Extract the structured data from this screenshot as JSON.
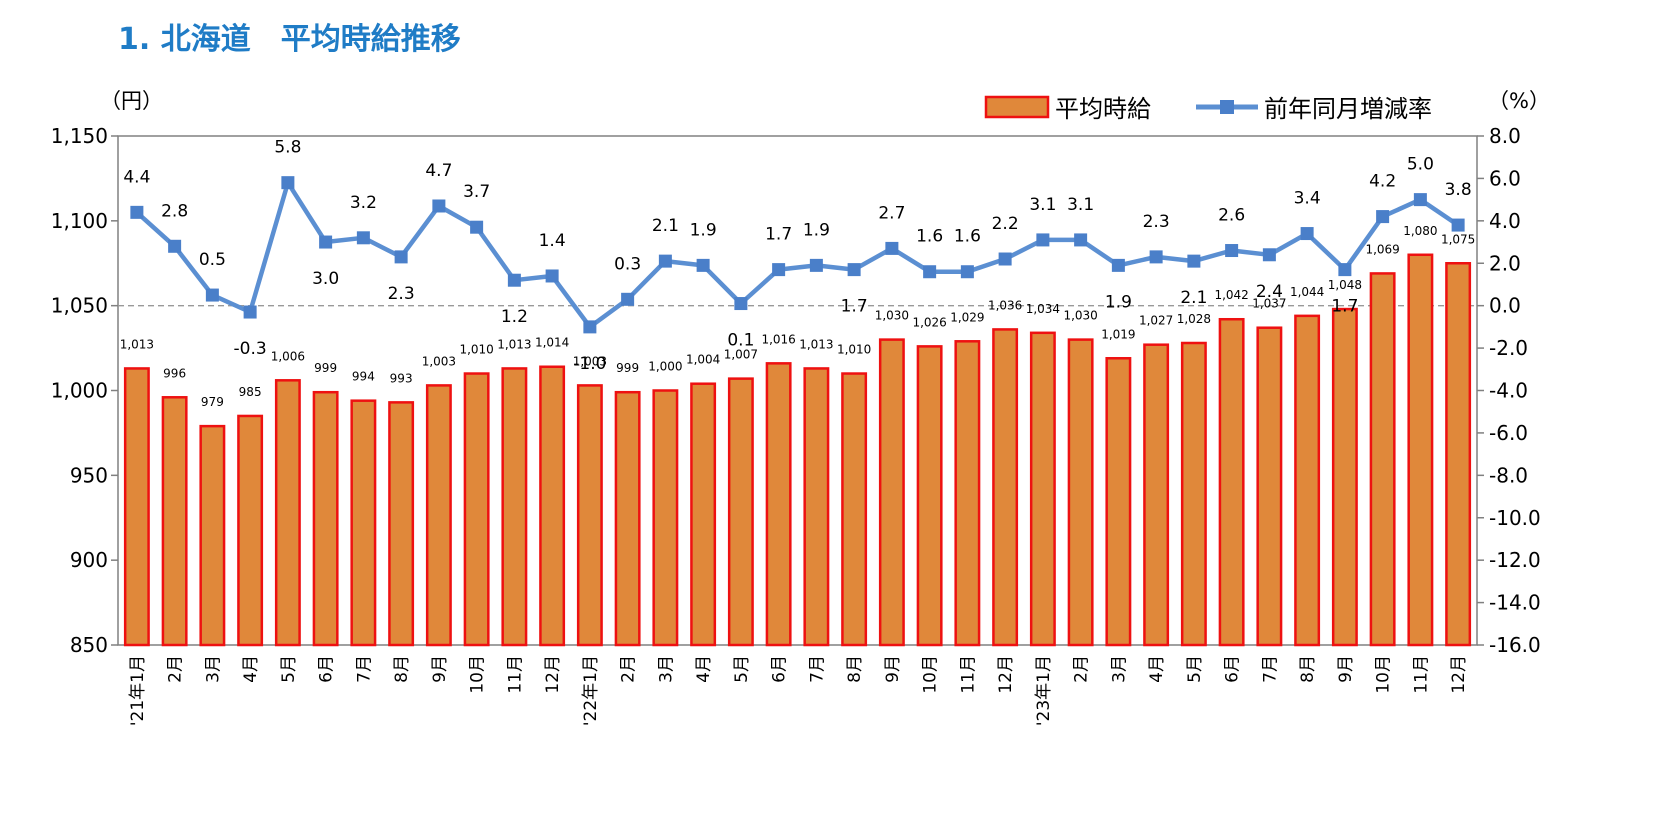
{
  "page": {
    "title": "1. 北海道　平均時給推移"
  },
  "colors": {
    "title": "#1f7cc6",
    "bar_fill": "#e0883a",
    "bar_stroke": "#ee1111",
    "line": "#5b8fd2",
    "marker": "#4a7fc9",
    "zero_line": "#999999"
  },
  "chart_data": {
    "type": "bar",
    "title": "1. 北海道　平均時給推移",
    "categories": [
      "'21年1月",
      "2月",
      "3月",
      "4月",
      "5月",
      "6月",
      "7月",
      "8月",
      "9月",
      "10月",
      "11月",
      "12月",
      "'22年1月",
      "2月",
      "3月",
      "4月",
      "5月",
      "6月",
      "7月",
      "8月",
      "9月",
      "10月",
      "11月",
      "12月",
      "'23年1月",
      "2月",
      "3月",
      "4月",
      "5月",
      "6月",
      "7月",
      "8月",
      "9月",
      "10月",
      "11月",
      "12月"
    ],
    "bar_labels": [
      "1,013",
      "996",
      "979",
      "985",
      "1,006",
      "999",
      "994",
      "993",
      "1,003",
      "1,010",
      "1,013",
      "1,014",
      "1,003",
      "999",
      "1,000",
      "1,004",
      "1,007",
      "1,016",
      "1,013",
      "1,010",
      "1,030",
      "1,026",
      "1,029",
      "1,036",
      "1,034",
      "1,030",
      "1,019",
      "1,027",
      "1,028",
      "1,042",
      "1,037",
      "1,044",
      "1,048",
      "1,069",
      "1,080",
      "1,075"
    ],
    "line_labels": [
      "4.4",
      "2.8",
      "0.5",
      "-0.3",
      "5.8",
      "3.0",
      "3.2",
      "2.3",
      "4.7",
      "3.7",
      "1.2",
      "1.4",
      "-1.0",
      "0.3",
      "2.1",
      "1.9",
      "0.1",
      "1.7",
      "1.9",
      "1.7",
      "2.7",
      "1.6",
      "1.6",
      "2.2",
      "3.1",
      "3.1",
      "1.9",
      "2.3",
      "2.1",
      "2.6",
      "2.4",
      "3.4",
      "1.7",
      "4.2",
      "5.0",
      "3.8"
    ],
    "series": [
      {
        "name": "平均時給",
        "type": "bar",
        "axis": "left",
        "values": [
          1013,
          996,
          979,
          985,
          1006,
          999,
          994,
          993,
          1003,
          1010,
          1013,
          1014,
          1003,
          999,
          1000,
          1004,
          1007,
          1016,
          1013,
          1010,
          1030,
          1026,
          1029,
          1036,
          1034,
          1030,
          1019,
          1027,
          1028,
          1042,
          1037,
          1044,
          1048,
          1069,
          1080,
          1075
        ]
      },
      {
        "name": "前年同月増減率",
        "type": "line",
        "axis": "right",
        "values": [
          4.4,
          2.8,
          0.5,
          -0.3,
          5.8,
          3.0,
          3.2,
          2.3,
          4.7,
          3.7,
          1.2,
          1.4,
          -1.0,
          0.3,
          2.1,
          1.9,
          0.1,
          1.7,
          1.9,
          1.7,
          2.7,
          1.6,
          1.6,
          2.2,
          3.1,
          3.1,
          1.9,
          2.3,
          2.1,
          2.6,
          2.4,
          3.4,
          1.7,
          4.2,
          5.0,
          3.8
        ]
      }
    ],
    "left_axis": {
      "unit": "（円）",
      "ylim": [
        850,
        1150
      ],
      "ticks": [
        850,
        900,
        950,
        1000,
        1050,
        1100,
        1150
      ],
      "tick_labels": [
        "850",
        "900",
        "950",
        "1,000",
        "1,050",
        "1,100",
        "1,150"
      ]
    },
    "right_axis": {
      "unit": "（%）",
      "ylim": [
        -16,
        8
      ],
      "ticks": [
        8,
        6,
        4,
        2,
        0,
        -2,
        -4,
        -6,
        -8,
        -10,
        -12,
        -14,
        -16
      ],
      "tick_labels": [
        "8.0",
        "6.0",
        "4.0",
        "2.0",
        "0.0",
        "-2.0",
        "-4.0",
        "-6.0",
        "-8.0",
        "-10.0",
        "-12.0",
        "-14.0",
        "-16.0"
      ]
    },
    "legend": {
      "position": "top-right",
      "items": [
        "平均時給",
        "前年同月増減率"
      ]
    },
    "grid": false
  }
}
